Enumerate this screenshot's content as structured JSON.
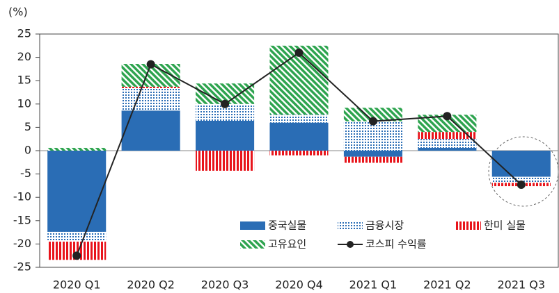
{
  "chart_data": {
    "type": "stacked_bar_line",
    "y_label": "(%)",
    "categories": [
      "2020 Q1",
      "2020 Q2",
      "2020 Q3",
      "2020 Q4",
      "2021 Q1",
      "2021 Q2",
      "2021 Q3"
    ],
    "series": [
      {
        "name": "중국실물",
        "color": "#2a6db5",
        "pattern": "solid",
        "values": [
          -17.4,
          8.6,
          6.4,
          6.0,
          -1.3,
          0.6,
          -5.6
        ]
      },
      {
        "name": "금융시장",
        "color": "#2a6db5",
        "pattern": "dots",
        "values": [
          -2.1,
          4.8,
          3.6,
          1.7,
          6.3,
          1.9,
          -1.3
        ]
      },
      {
        "name": "한미 실물",
        "color": "#e8141b",
        "pattern": "vertical-stripes",
        "values": [
          -3.9,
          0.3,
          -4.3,
          -1.0,
          -1.3,
          1.5,
          -0.7
        ]
      },
      {
        "name": "고유요인",
        "color": "#2ea44f",
        "pattern": "diagonal-stripes",
        "values": [
          0.6,
          4.9,
          4.4,
          14.8,
          2.9,
          3.7,
          0
        ]
      },
      {
        "name": "코스피 수익률",
        "color": "#222222",
        "kind": "line",
        "values": [
          -22.5,
          18.5,
          10.0,
          21.0,
          6.3,
          7.4,
          -7.3
        ]
      }
    ],
    "ylim": [
      -25,
      25
    ],
    "yticks": [
      -25,
      -20,
      -15,
      -10,
      -5,
      0,
      5,
      10,
      15,
      20,
      25
    ],
    "grid": false
  }
}
